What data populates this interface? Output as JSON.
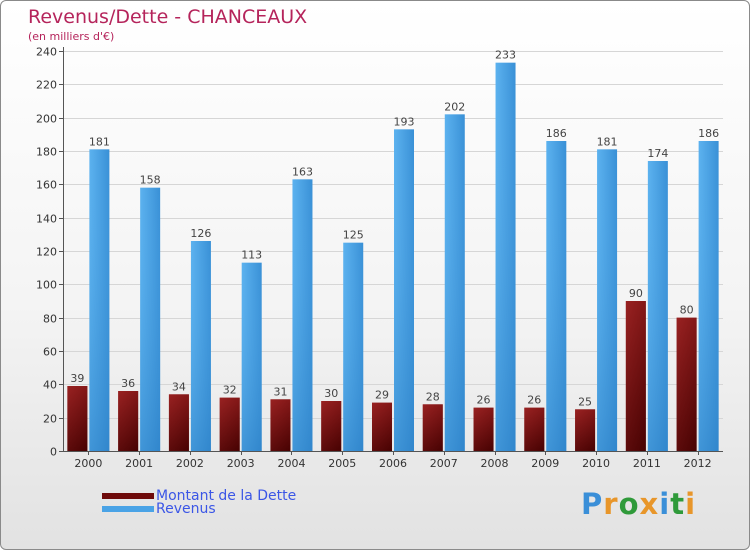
{
  "chart_data": {
    "type": "bar",
    "title": "Revenus/Dette - CHANCEAUX",
    "subtitle": "(en milliers d'€)",
    "categories": [
      "2000",
      "2001",
      "2002",
      "2003",
      "2004",
      "2005",
      "2006",
      "2007",
      "2008",
      "2009",
      "2010",
      "2011",
      "2012"
    ],
    "series": [
      {
        "name": "Montant de la Dette",
        "color": "#6e0a0a",
        "values": [
          39,
          36,
          34,
          32,
          31,
          30,
          29,
          28,
          26,
          26,
          25,
          90,
          80
        ]
      },
      {
        "name": "Revenus",
        "color": "#4aa3e6",
        "values": [
          181,
          158,
          126,
          113,
          163,
          125,
          193,
          202,
          233,
          186,
          181,
          174,
          186
        ]
      }
    ],
    "yticks": [
      0,
      20,
      40,
      60,
      80,
      100,
      120,
      140,
      160,
      180,
      200,
      220,
      240
    ],
    "ylim": [
      0,
      240
    ],
    "grid": true,
    "legend_position": "bottom-left"
  },
  "legend": {
    "debt_label": "Montant de la Dette",
    "revenue_label": "Revenus"
  },
  "logo": {
    "text": "Proxiti"
  }
}
